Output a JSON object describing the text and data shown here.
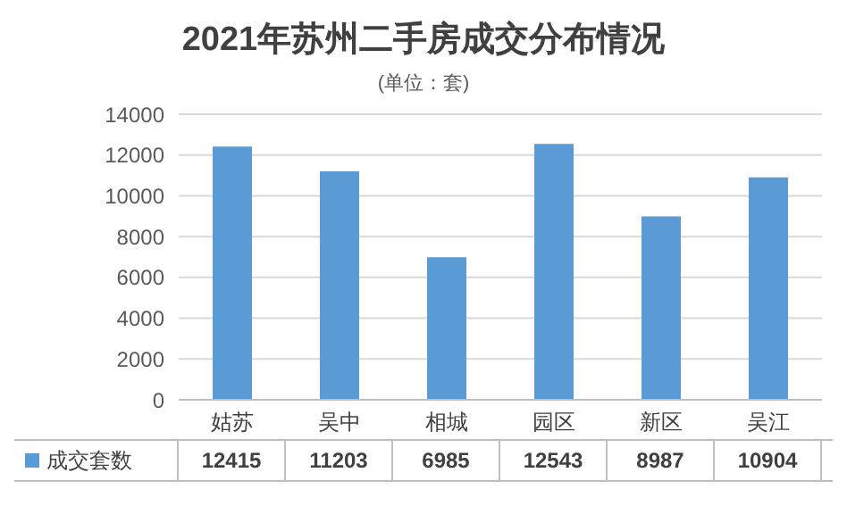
{
  "chart_data": {
    "type": "bar",
    "title": "2021年苏州二手房成交分布情况",
    "subtitle": "(单位：套)",
    "categories": [
      "姑苏",
      "吴中",
      "相城",
      "园区",
      "新区",
      "吴江"
    ],
    "series": [
      {
        "name": "成交套数",
        "color": "#5b9bd5",
        "values": [
          12415,
          11203,
          6985,
          12543,
          8987,
          10904
        ]
      }
    ],
    "ylim": [
      0,
      14000
    ],
    "yticks": [
      0,
      2000,
      4000,
      6000,
      8000,
      10000,
      12000,
      14000
    ],
    "grid": "y",
    "legend": "bottom",
    "data_labels": true
  }
}
